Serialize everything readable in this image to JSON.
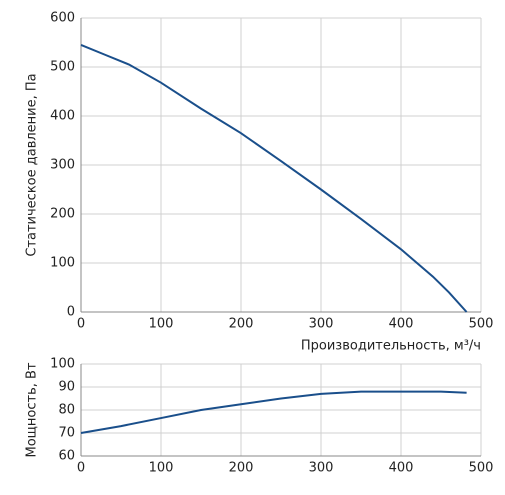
{
  "chart_data": [
    {
      "type": "line",
      "ylabel": "Статическое давление, Па",
      "xlabel": "Производительность, м³/ч",
      "x": [
        0,
        30,
        60,
        100,
        150,
        200,
        250,
        300,
        350,
        400,
        440,
        460,
        482
      ],
      "values": [
        545,
        525,
        505,
        468,
        415,
        365,
        308,
        250,
        190,
        128,
        72,
        40,
        0
      ],
      "color": "#1a4f8b",
      "xlim": [
        0,
        500
      ],
      "xticks": [
        0,
        100,
        200,
        300,
        400,
        500
      ],
      "ylim": [
        0,
        600
      ],
      "yticks": [
        0,
        100,
        200,
        300,
        400,
        500,
        600
      ],
      "grid": true
    },
    {
      "type": "line",
      "ylabel": "Мощность, Вт",
      "x": [
        0,
        50,
        100,
        150,
        200,
        250,
        300,
        350,
        400,
        450,
        482
      ],
      "values": [
        70,
        73,
        76.5,
        80,
        82.5,
        85,
        87,
        88,
        88,
        88,
        87.5
      ],
      "color": "#1a4f8b",
      "xlim": [
        0,
        500
      ],
      "xticks": [
        0,
        100,
        200,
        300,
        400,
        500
      ],
      "ylim": [
        60,
        100
      ],
      "yticks": [
        60,
        70,
        80,
        90,
        100
      ],
      "grid": true
    }
  ]
}
